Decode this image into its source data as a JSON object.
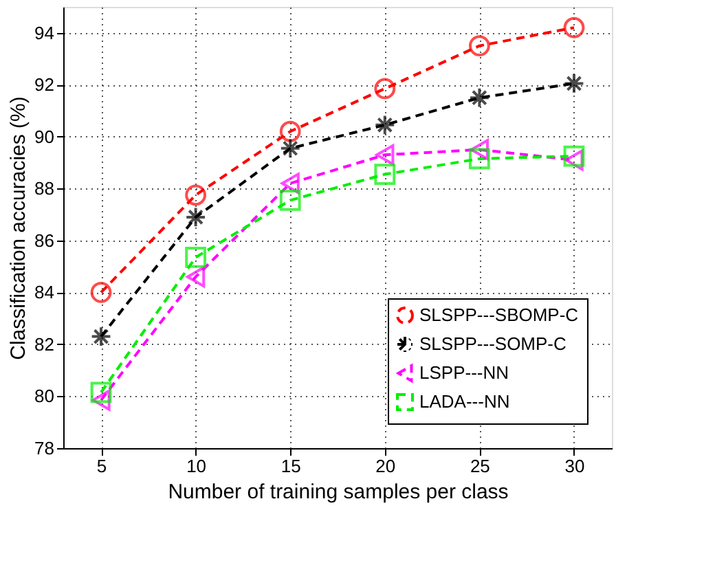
{
  "chart_data": {
    "type": "line",
    "xlabel": "Number of training samples per class",
    "ylabel": "Classification accuracies (%)",
    "x": [
      5,
      10,
      15,
      20,
      25,
      30
    ],
    "series": [
      {
        "name": "SLSPP---SBOMP-C",
        "color": "#ff0000",
        "marker": "circle",
        "values": [
          84.0,
          87.75,
          90.2,
          91.85,
          93.5,
          94.2
        ]
      },
      {
        "name": "SLSPP---SOMP-C",
        "color": "#000000",
        "marker": "cross",
        "values": [
          82.3,
          86.9,
          89.55,
          90.45,
          91.5,
          92.05
        ]
      },
      {
        "name": "LSPP---NN",
        "color": "#ff00ff",
        "marker": "triangle",
        "values": [
          79.85,
          84.6,
          88.2,
          89.3,
          89.5,
          89.1
        ]
      },
      {
        "name": "LADA---NN",
        "color": "#00ee00",
        "marker": "square",
        "values": [
          80.15,
          85.35,
          87.55,
          88.55,
          89.15,
          89.25
        ]
      }
    ],
    "xlim": [
      3,
      32
    ],
    "xticks": [
      5,
      10,
      15,
      20,
      25,
      30
    ],
    "ylim": [
      78,
      95
    ],
    "yticks": [
      78,
      80,
      82,
      84,
      86,
      88,
      90,
      92,
      94
    ],
    "grid": true,
    "legend": "bottom right",
    "line_style": "dashed"
  }
}
